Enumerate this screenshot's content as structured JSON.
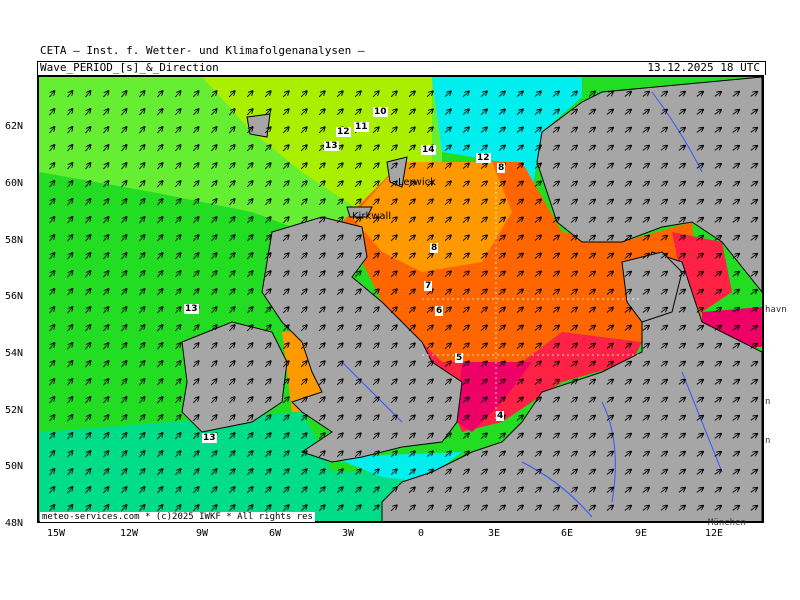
{
  "header": {
    "title": "CETA – Inst. f. Wetter- und Klimafolgenanalysen –",
    "parameter": "Wave_PERIOD_[s]_&_Direction",
    "datetime": "13.12.2025 18 UTC"
  },
  "credit": "meteo-services.com * (c)2025 IWKF * All rights res",
  "axes": {
    "lat_labels": [
      "62N",
      "60N",
      "58N",
      "56N",
      "54N",
      "52N",
      "50N",
      "48N"
    ],
    "lon_labels": [
      "15W",
      "12W",
      "9W",
      "6W",
      "3W",
      "0",
      "3E",
      "6E",
      "9E",
      "12E"
    ]
  },
  "period_labels": [
    {
      "text": "10"
    },
    {
      "text": "11"
    },
    {
      "text": "12"
    },
    {
      "text": "13"
    },
    {
      "text": "14"
    },
    {
      "text": "12"
    },
    {
      "text": "8"
    },
    {
      "text": "8"
    },
    {
      "text": "7"
    },
    {
      "text": "6"
    },
    {
      "text": "5"
    },
    {
      "text": "4"
    },
    {
      "text": "13"
    },
    {
      "text": "13"
    }
  ],
  "places": [
    {
      "text": "Lerwick"
    },
    {
      "text": "Kirkwall"
    }
  ],
  "edge_texts": [
    "havn",
    "n",
    "n",
    "München"
  ],
  "colors": {
    "sea_green": "#22dd22",
    "sea_lightgreen": "#66ee33",
    "sea_yellowgreen": "#aaee00",
    "sea_cyan": "#00eeee",
    "sea_teal": "#00dd88",
    "sea_orange": "#ff9900",
    "sea_darkorange": "#ff6600",
    "sea_red": "#ff2244",
    "sea_magenta": "#ee0066",
    "land": "#a6a6a6",
    "rivers": "#3355ff"
  }
}
